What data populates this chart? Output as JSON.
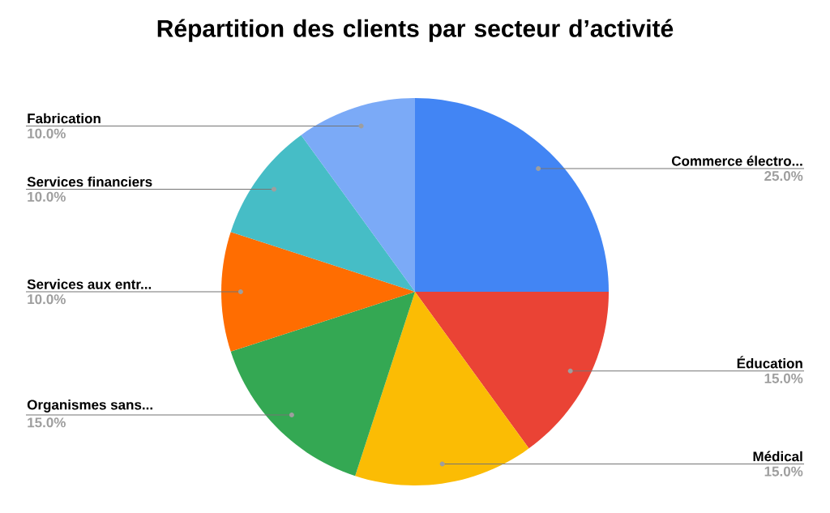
{
  "chart_data": {
    "type": "pie",
    "title": "Répartition des clients par secteur d’activité",
    "categories": [
      "Commerce électro...",
      "Éducation",
      "Médical",
      "Organismes sans...",
      "Services aux entr...",
      "Services financiers",
      "Fabrication"
    ],
    "values": [
      25,
      15,
      15,
      15,
      10,
      10,
      10
    ],
    "value_labels": [
      "25.0%",
      "15.0%",
      "15.0%",
      "15.0%",
      "10.0%",
      "10.0%",
      "10.0%"
    ],
    "colors": [
      "#4285f4",
      "#ea4335",
      "#fbbc04",
      "#34a853",
      "#ff6d01",
      "#46bdc6",
      "#7baaf7"
    ]
  }
}
